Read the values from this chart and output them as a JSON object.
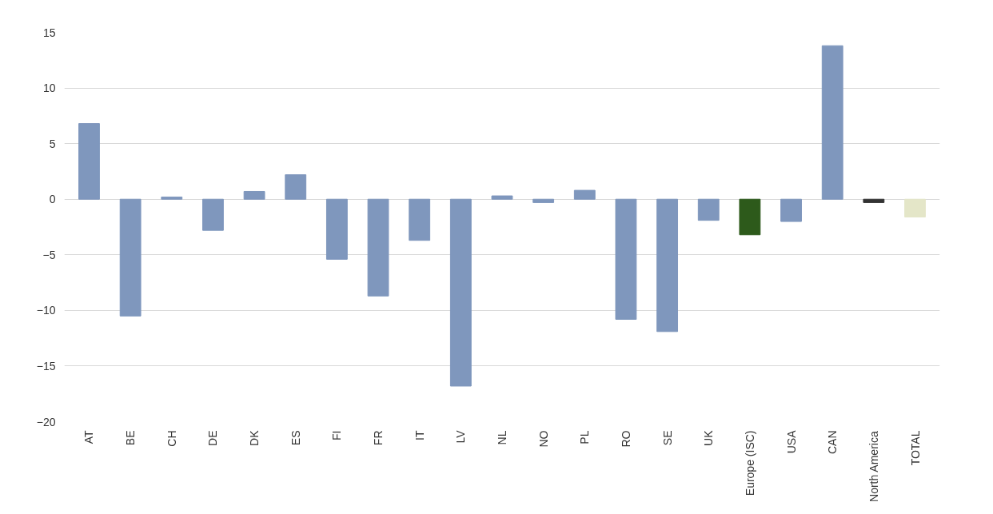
{
  "chart_data": {
    "type": "bar",
    "categories": [
      "AT",
      "BE",
      "CH",
      "DE",
      "DK",
      "ES",
      "FI",
      "FR",
      "IT",
      "LV",
      "NL",
      "NO",
      "PL",
      "RO",
      "SE",
      "UK",
      "Europe (ISC)",
      "USA",
      "CAN",
      "North America",
      "TOTAL"
    ],
    "values": [
      6.8,
      -10.5,
      0.2,
      -2.8,
      0.7,
      2.2,
      -5.4,
      -8.7,
      -3.7,
      -16.8,
      0.3,
      -0.3,
      0.8,
      -10.8,
      -11.9,
      -1.9,
      -3.2,
      -2.0,
      13.8,
      -0.3,
      -1.6
    ],
    "colors": [
      "#7f97bd",
      "#7f97bd",
      "#7f97bd",
      "#7f97bd",
      "#7f97bd",
      "#7f97bd",
      "#7f97bd",
      "#7f97bd",
      "#7f97bd",
      "#7f97bd",
      "#7f97bd",
      "#7f97bd",
      "#7f97bd",
      "#7f97bd",
      "#7f97bd",
      "#7f97bd",
      "#2d5a1b",
      "#7f97bd",
      "#7f97bd",
      "#333333",
      "#e4e6c8"
    ],
    "ylim": [
      -20,
      15
    ],
    "yticks": [
      -20,
      -15,
      -10,
      -5,
      0,
      5,
      10,
      15
    ],
    "grid": "y"
  }
}
